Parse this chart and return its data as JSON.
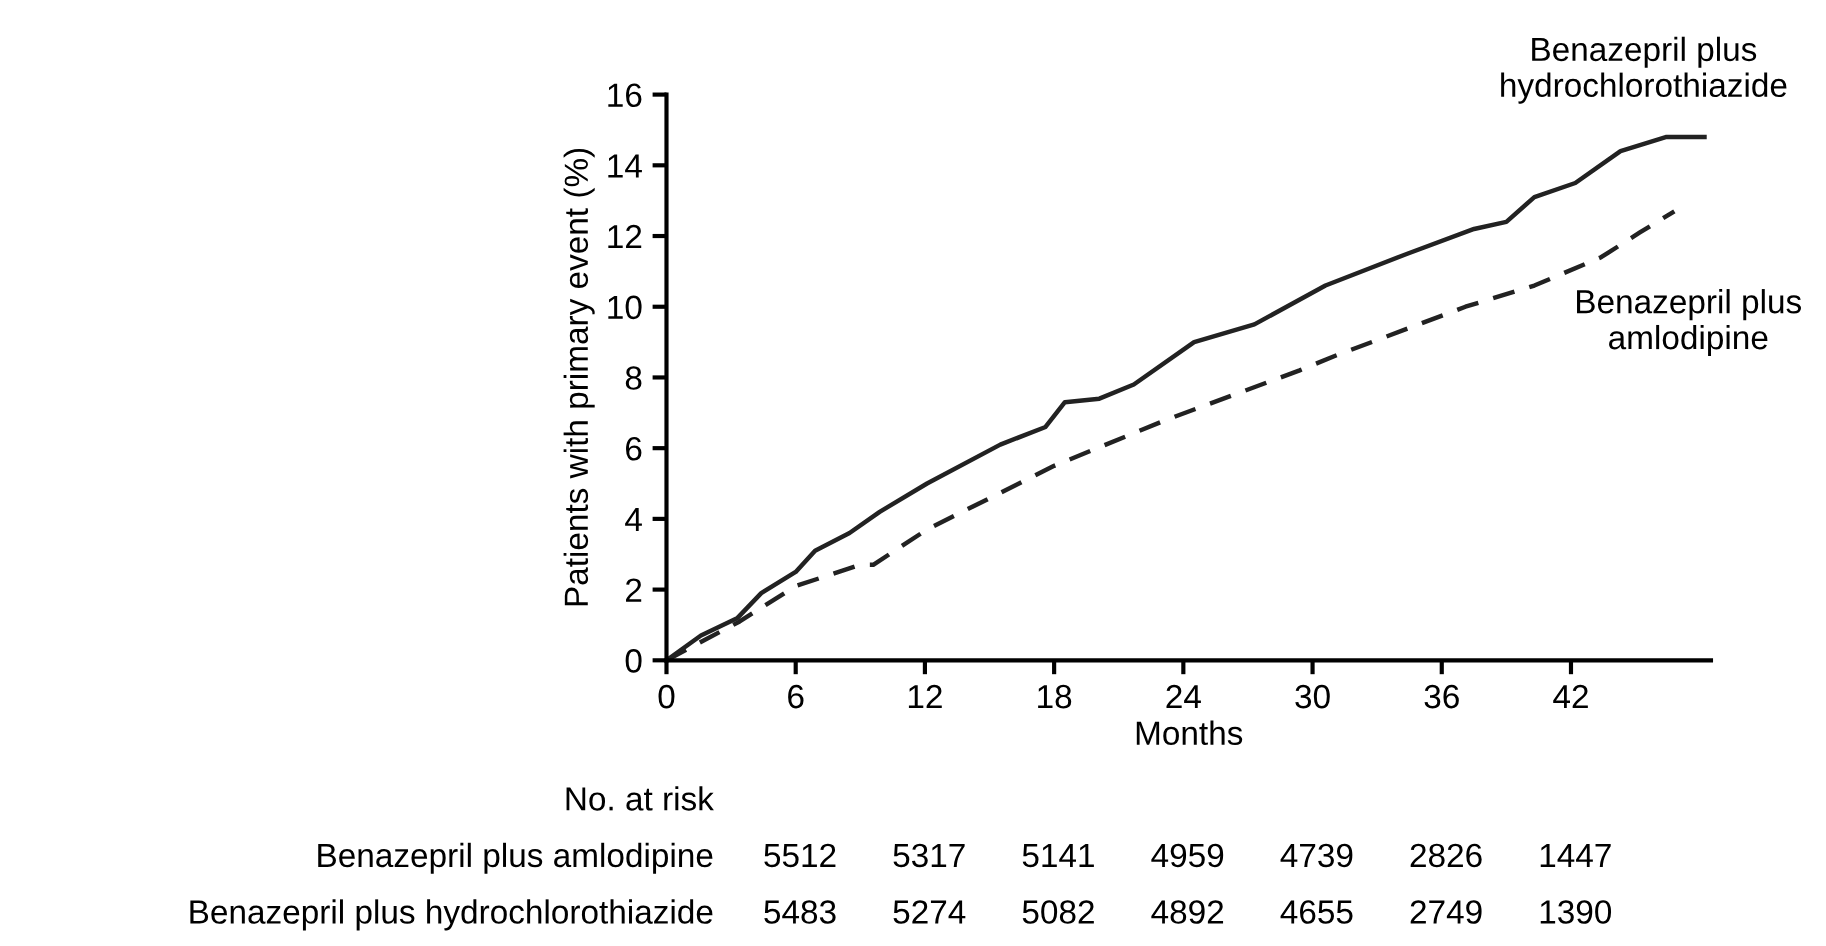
{
  "chart_data": {
    "type": "line",
    "xlabel": "Months",
    "ylabel": "Patients with primary event (%)",
    "xlim": [
      0,
      48.5
    ],
    "xticks": [
      0,
      6,
      12,
      18,
      24,
      30,
      36,
      42
    ],
    "ylim": [
      0,
      16
    ],
    "yticks": [
      0,
      2,
      4,
      6,
      8,
      10,
      12,
      14,
      16
    ],
    "grid": false,
    "legend": false,
    "marker": "none",
    "series": [
      {
        "name": "Benazepril plus hydrochlorothiazide",
        "color": "#222222",
        "line_style": "solid",
        "x": [
          0,
          1.6,
          3.3,
          4.4,
          6,
          6.9,
          8.5,
          9.9,
          12.1,
          15.5,
          17.6,
          18.5,
          20.1,
          21.7,
          24.5,
          27.3,
          30.6,
          34.4,
          37.5,
          39,
          40.3,
          42.2,
          44.3,
          46.4,
          48.2
        ],
        "values": [
          0,
          0.7,
          1.2,
          1.9,
          2.5,
          3.1,
          3.6,
          4.2,
          5.0,
          6.1,
          6.6,
          7.3,
          7.4,
          7.8,
          9.0,
          9.5,
          10.6,
          11.5,
          12.2,
          12.4,
          13.1,
          13.5,
          14.4,
          14.8,
          14.8
        ]
      },
      {
        "name": "Benazepril plus amlodipine",
        "color": "#222222",
        "line_style": "dashed",
        "x": [
          0,
          3.4,
          6,
          9,
          9.6,
          12.1,
          18,
          23.2,
          29.4,
          31,
          37.1,
          40.3,
          43.4,
          45.2,
          46.8
        ],
        "values": [
          0,
          1.1,
          2.1,
          2.7,
          2.7,
          3.7,
          5.5,
          6.8,
          8.2,
          8.6,
          10.0,
          10.6,
          11.4,
          12.1,
          12.7
        ]
      }
    ],
    "annotations": [
      "No. at risk",
      "Benazepril plus amlodipine",
      "5512",
      "5317",
      "5141",
      "4959",
      "4739",
      "2826",
      "1447",
      "Benazepril plus hydrochlorothiazide",
      "5483",
      "5274",
      "5082",
      "4892",
      "4655",
      "2749",
      "1390"
    ]
  }
}
